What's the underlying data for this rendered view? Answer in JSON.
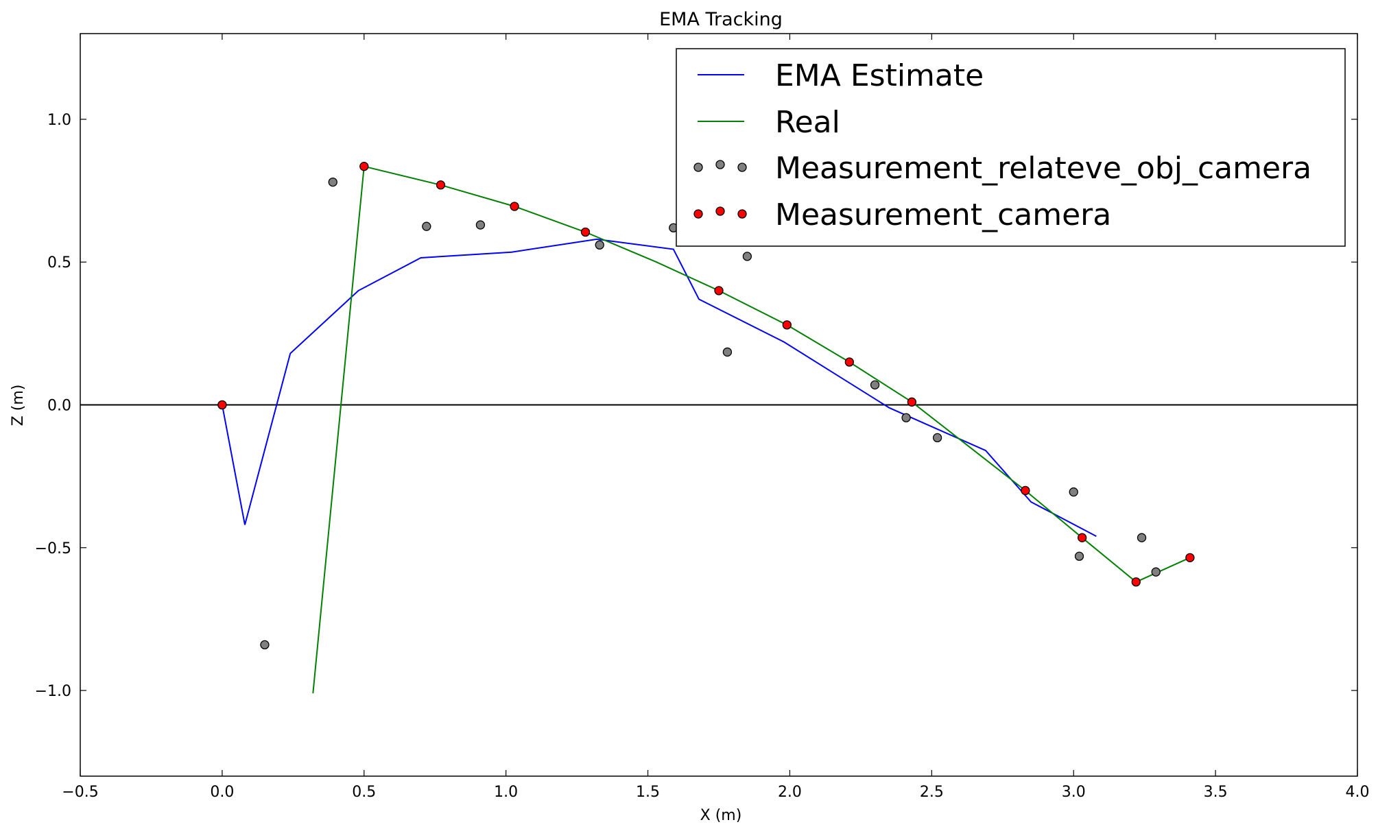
{
  "chart_data": {
    "type": "line+scatter",
    "title": "EMA Tracking",
    "xlabel": "X (m)",
    "ylabel": "Z (m)",
    "xlim": [
      -0.5,
      4.0
    ],
    "ylim": [
      -1.3,
      1.3
    ],
    "xticks": [
      "-0.5",
      "0.0",
      "0.5",
      "1.0",
      "1.5",
      "2.0",
      "2.5",
      "3.0",
      "3.5",
      "4.0"
    ],
    "yticks": [
      "-1.0",
      "-0.5",
      "0.0",
      "0.5",
      "1.0"
    ],
    "xtick_values": [
      -0.5,
      0.0,
      0.5,
      1.0,
      1.5,
      2.0,
      2.5,
      3.0,
      3.5,
      4.0
    ],
    "ytick_values": [
      -1.0,
      -0.5,
      0.0,
      0.5,
      1.0
    ],
    "grid": false,
    "legend_position": "top-right",
    "zero_line": true,
    "series": [
      {
        "name": "EMA Estimate",
        "kind": "line",
        "color": "#0000ff",
        "x": [
          0.0,
          0.08,
          0.24,
          0.48,
          0.7,
          1.02,
          1.32,
          1.59,
          1.68,
          1.98,
          2.35,
          2.69,
          2.85,
          3.08
        ],
        "y": [
          0.0,
          -0.42,
          0.18,
          0.4,
          0.515,
          0.535,
          0.58,
          0.545,
          0.37,
          0.22,
          -0.01,
          -0.16,
          -0.34,
          -0.46
        ]
      },
      {
        "name": "Real",
        "kind": "line",
        "color": "#008000",
        "x": [
          0.32,
          0.5,
          0.77,
          1.03,
          1.28,
          1.53,
          1.75,
          1.99,
          2.21,
          2.43,
          2.83,
          3.03,
          3.22,
          3.41
        ],
        "y": [
          -1.01,
          0.835,
          0.77,
          0.695,
          0.605,
          0.5,
          0.4,
          0.28,
          0.15,
          0.01,
          -0.3,
          -0.465,
          -0.62,
          -0.535
        ]
      },
      {
        "name": "Measurement_relateve_obj_camera",
        "kind": "scatter",
        "color": "#808080",
        "x": [
          0.0,
          0.15,
          0.39,
          0.72,
          0.91,
          1.33,
          1.59,
          1.78,
          1.85,
          2.3,
          2.41,
          2.52,
          3.0,
          3.02,
          3.24,
          3.29
        ],
        "y": [
          0.0,
          -0.84,
          0.78,
          0.625,
          0.63,
          0.56,
          0.62,
          0.185,
          0.52,
          0.07,
          -0.045,
          -0.115,
          -0.305,
          -0.53,
          -0.465,
          -0.585
        ]
      },
      {
        "name": "Measurement_camera",
        "kind": "scatter",
        "color": "#ff0000",
        "x": [
          0.0,
          0.5,
          0.77,
          1.03,
          1.28,
          1.75,
          1.99,
          2.21,
          2.43,
          2.83,
          3.03,
          3.22,
          3.41
        ],
        "y": [
          0.0,
          0.835,
          0.77,
          0.695,
          0.605,
          0.4,
          0.28,
          0.15,
          0.01,
          -0.3,
          -0.465,
          -0.62,
          -0.535
        ]
      }
    ]
  }
}
